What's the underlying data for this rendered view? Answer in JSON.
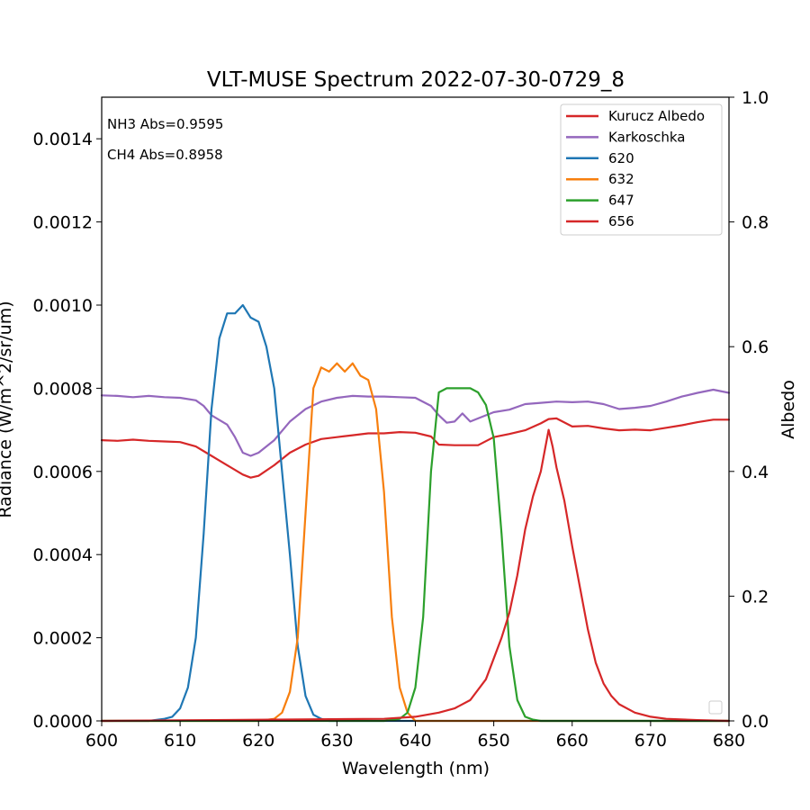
{
  "chart_data": {
    "type": "line",
    "title": "VLT-MUSE Spectrum 2022-07-30-0729_8",
    "xlabel": "Wavelength (nm)",
    "ylabel": "Radiance (W/m^2/sr/um)",
    "y2label": "Albedo",
    "xlim": [
      600,
      680
    ],
    "ylim": [
      0,
      0.0015
    ],
    "y2lim": [
      0,
      1.0
    ],
    "xticks": [
      "600",
      "610",
      "620",
      "630",
      "640",
      "650",
      "660",
      "670",
      "680"
    ],
    "xtick_values": [
      600,
      610,
      620,
      630,
      640,
      650,
      660,
      670,
      680
    ],
    "yticks": [
      "0.0000",
      "0.0002",
      "0.0004",
      "0.0006",
      "0.0008",
      "0.0010",
      "0.0012",
      "0.0014"
    ],
    "ytick_values": [
      0,
      0.0002,
      0.0004,
      0.0006,
      0.0008,
      0.001,
      0.0012,
      0.0014
    ],
    "y2ticks": [
      "0.0",
      "0.2",
      "0.4",
      "0.6",
      "0.8",
      "1.0"
    ],
    "y2tick_values": [
      0,
      0.2,
      0.4,
      0.6,
      0.8,
      1.0
    ],
    "grid": false,
    "legend_position": "top-right",
    "annotations": [
      "NH3 Abs=0.9595",
      "CH4 Abs=0.8958"
    ],
    "series": [
      {
        "name": "Kurucz Albedo",
        "color": "#d62728",
        "axis": "right",
        "x": [
          600,
          602,
          604,
          606,
          608,
          610,
          612,
          614,
          616,
          618,
          619,
          620,
          622,
          624,
          626,
          628,
          630,
          632,
          634,
          636,
          638,
          640,
          642,
          643,
          645,
          647,
          648,
          650,
          652,
          654,
          656,
          657,
          658,
          660,
          662,
          664,
          666,
          668,
          670,
          672,
          674,
          676,
          678,
          680
        ],
        "values": [
          0.45,
          0.449,
          0.451,
          0.449,
          0.448,
          0.447,
          0.44,
          0.425,
          0.41,
          0.395,
          0.39,
          0.393,
          0.41,
          0.43,
          0.443,
          0.452,
          0.455,
          0.458,
          0.461,
          0.461,
          0.463,
          0.462,
          0.456,
          0.443,
          0.442,
          0.442,
          0.442,
          0.455,
          0.46,
          0.466,
          0.477,
          0.484,
          0.485,
          0.472,
          0.473,
          0.469,
          0.466,
          0.467,
          0.466,
          0.47,
          0.474,
          0.479,
          0.483,
          0.483
        ]
      },
      {
        "name": "Karkoschka",
        "color": "#9467bd",
        "axis": "right",
        "x": [
          600,
          602,
          604,
          606,
          608,
          610,
          612,
          613,
          614,
          616,
          617,
          618,
          619,
          620,
          622,
          624,
          626,
          628,
          630,
          632,
          634,
          636,
          638,
          640,
          642,
          643,
          644,
          645,
          646,
          647,
          648,
          650,
          652,
          654,
          656,
          658,
          660,
          662,
          664,
          666,
          668,
          670,
          672,
          674,
          676,
          678,
          680
        ],
        "values": [
          0.522,
          0.521,
          0.519,
          0.521,
          0.519,
          0.518,
          0.514,
          0.505,
          0.49,
          0.475,
          0.455,
          0.43,
          0.425,
          0.43,
          0.45,
          0.48,
          0.5,
          0.512,
          0.518,
          0.521,
          0.52,
          0.52,
          0.519,
          0.518,
          0.505,
          0.49,
          0.478,
          0.48,
          0.493,
          0.48,
          0.485,
          0.495,
          0.499,
          0.508,
          0.51,
          0.512,
          0.511,
          0.512,
          0.508,
          0.5,
          0.502,
          0.505,
          0.512,
          0.52,
          0.526,
          0.531,
          0.526
        ]
      },
      {
        "name": "620",
        "color": "#1f77b4",
        "axis": "left",
        "x": [
          600,
          606,
          608,
          609,
          610,
          611,
          612,
          613,
          614,
          615,
          616,
          617,
          618,
          619,
          620,
          621,
          622,
          623,
          624,
          625,
          626,
          627,
          628,
          629,
          630,
          632,
          635,
          640,
          680
        ],
        "values": [
          0,
          0,
          5e-06,
          1e-05,
          3e-05,
          8e-05,
          0.0002,
          0.00045,
          0.00075,
          0.00092,
          0.00098,
          0.00098,
          0.001,
          0.00097,
          0.00096,
          0.0009,
          0.0008,
          0.0006,
          0.0004,
          0.00018,
          6e-05,
          1.5e-05,
          5e-06,
          0,
          0,
          0,
          0,
          0,
          0
        ]
      },
      {
        "name": "632",
        "color": "#f77f0e",
        "axis": "left",
        "x": [
          600,
          620,
          622,
          623,
          624,
          625,
          626,
          627,
          628,
          629,
          630,
          631,
          632,
          633,
          634,
          635,
          636,
          637,
          638,
          639,
          640,
          680
        ],
        "values": [
          0,
          0,
          5e-06,
          2e-05,
          7e-05,
          0.0002,
          0.0005,
          0.0008,
          0.00085,
          0.00084,
          0.00086,
          0.00084,
          0.00086,
          0.00083,
          0.00082,
          0.00075,
          0.00055,
          0.00025,
          8e-05,
          2e-05,
          0,
          0
        ]
      },
      {
        "name": "647",
        "color": "#2ca02c",
        "axis": "left",
        "x": [
          600,
          636,
          638,
          639,
          640,
          641,
          642,
          643,
          644,
          645,
          646,
          647,
          648,
          649,
          650,
          651,
          652,
          653,
          654,
          655,
          656,
          680
        ],
        "values": [
          0,
          0,
          5e-06,
          2e-05,
          8e-05,
          0.00025,
          0.0006,
          0.00079,
          0.0008,
          0.0008,
          0.0008,
          0.0008,
          0.00079,
          0.00076,
          0.00068,
          0.00045,
          0.00018,
          5e-05,
          1e-05,
          3e-06,
          0,
          0
        ]
      },
      {
        "name": "656",
        "color": "#d62728",
        "axis": "left",
        "x": [
          600,
          636,
          640,
          643,
          645,
          647,
          649,
          650,
          651,
          652,
          653,
          654,
          655,
          656,
          657,
          657.5,
          658,
          659,
          660,
          661,
          662,
          663,
          664,
          665,
          666,
          668,
          670,
          672,
          676,
          680
        ],
        "values": [
          0,
          5e-06,
          1e-05,
          2e-05,
          3e-05,
          5e-05,
          0.0001,
          0.00015,
          0.0002,
          0.00026,
          0.00035,
          0.00046,
          0.00054,
          0.0006,
          0.0007,
          0.00066,
          0.00061,
          0.00053,
          0.00042,
          0.00032,
          0.00022,
          0.00014,
          9e-05,
          6e-05,
          4e-05,
          2e-05,
          1e-05,
          5e-06,
          2e-06,
          0
        ]
      }
    ]
  }
}
